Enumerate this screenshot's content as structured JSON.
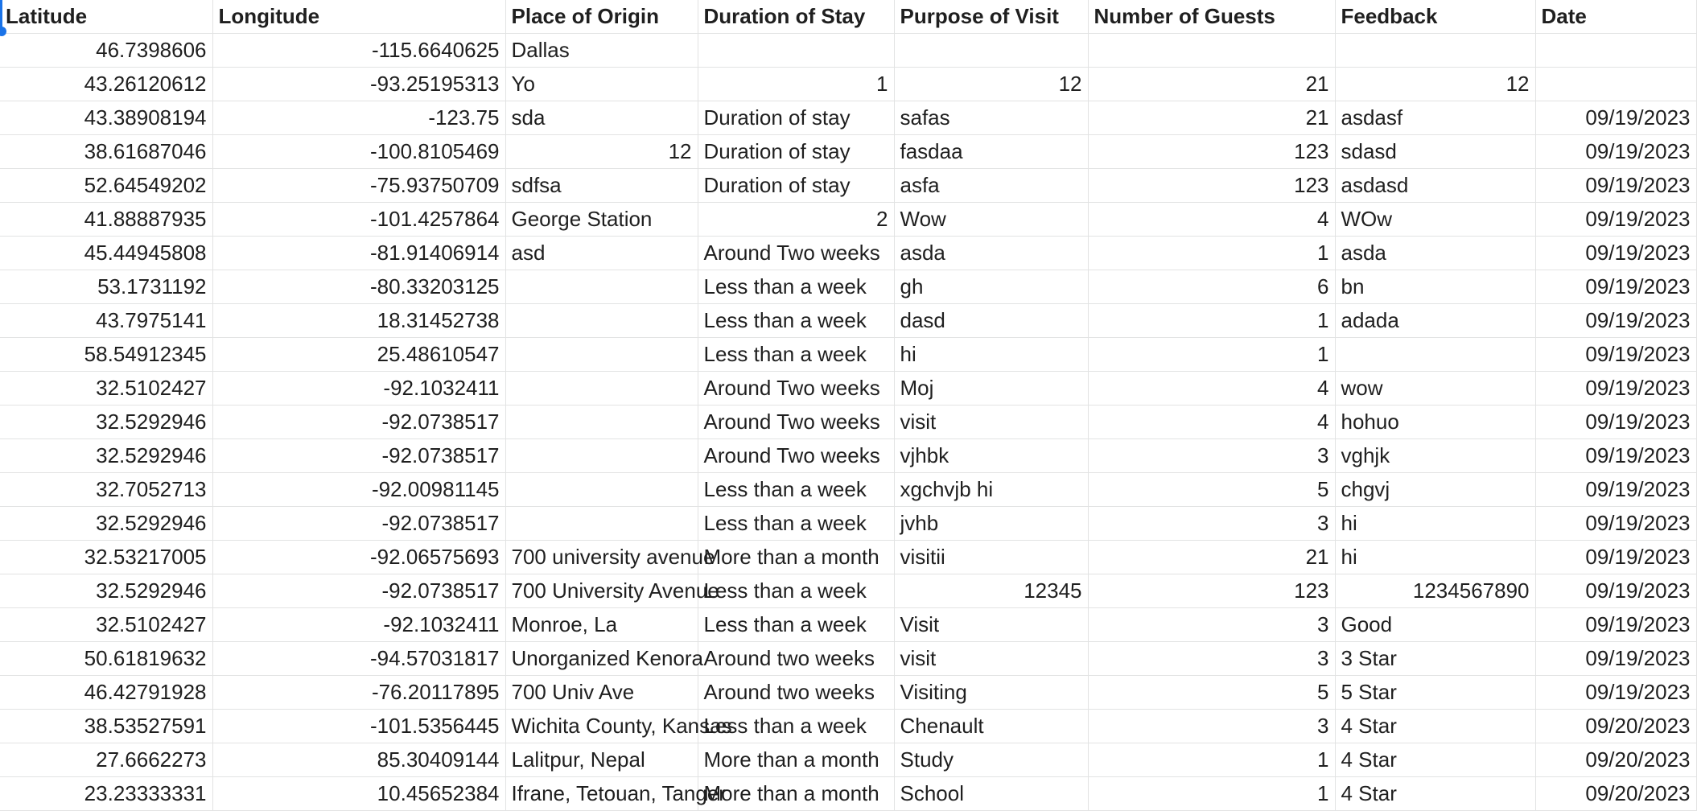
{
  "columns": [
    "Latitude",
    "Longitude",
    "Place of Origin",
    "Duration of Stay",
    "Purpose of Visit",
    "Number of Guests",
    "Feedback",
    "Date"
  ],
  "rows": [
    [
      {
        "v": "46.7398606",
        "a": "r"
      },
      {
        "v": "-115.6640625",
        "a": "r"
      },
      {
        "v": "Dallas",
        "a": "l"
      },
      {
        "v": "",
        "a": "l"
      },
      {
        "v": "",
        "a": "l"
      },
      {
        "v": "",
        "a": "l"
      },
      {
        "v": "",
        "a": "l"
      },
      {
        "v": "",
        "a": "l"
      }
    ],
    [
      {
        "v": "43.26120612",
        "a": "r"
      },
      {
        "v": "-93.25195313",
        "a": "r"
      },
      {
        "v": "Yo",
        "a": "l"
      },
      {
        "v": "1",
        "a": "r"
      },
      {
        "v": "12",
        "a": "r"
      },
      {
        "v": "21",
        "a": "r"
      },
      {
        "v": "12",
        "a": "r"
      },
      {
        "v": "",
        "a": "l"
      }
    ],
    [
      {
        "v": "43.38908194",
        "a": "r"
      },
      {
        "v": "-123.75",
        "a": "r"
      },
      {
        "v": "sda",
        "a": "l"
      },
      {
        "v": "Duration of stay",
        "a": "l"
      },
      {
        "v": "safas",
        "a": "l"
      },
      {
        "v": "21",
        "a": "r"
      },
      {
        "v": "asdasf",
        "a": "l"
      },
      {
        "v": "09/19/2023",
        "a": "r"
      }
    ],
    [
      {
        "v": "38.61687046",
        "a": "r"
      },
      {
        "v": "-100.8105469",
        "a": "r"
      },
      {
        "v": "12",
        "a": "r"
      },
      {
        "v": "Duration of stay",
        "a": "l"
      },
      {
        "v": "fasdaa",
        "a": "l"
      },
      {
        "v": "123",
        "a": "r"
      },
      {
        "v": "sdasd",
        "a": "l"
      },
      {
        "v": "09/19/2023",
        "a": "r"
      }
    ],
    [
      {
        "v": "52.64549202",
        "a": "r"
      },
      {
        "v": "-75.93750709",
        "a": "r"
      },
      {
        "v": "sdfsa",
        "a": "l"
      },
      {
        "v": "Duration of stay",
        "a": "l"
      },
      {
        "v": "asfa",
        "a": "l"
      },
      {
        "v": "123",
        "a": "r"
      },
      {
        "v": "asdasd",
        "a": "l"
      },
      {
        "v": "09/19/2023",
        "a": "r"
      }
    ],
    [
      {
        "v": "41.88887935",
        "a": "r"
      },
      {
        "v": "-101.4257864",
        "a": "r"
      },
      {
        "v": "George Station",
        "a": "l"
      },
      {
        "v": "2",
        "a": "r"
      },
      {
        "v": "Wow",
        "a": "l"
      },
      {
        "v": "4",
        "a": "r"
      },
      {
        "v": "WOw",
        "a": "l"
      },
      {
        "v": "09/19/2023",
        "a": "r"
      }
    ],
    [
      {
        "v": "45.44945808",
        "a": "r"
      },
      {
        "v": "-81.91406914",
        "a": "r"
      },
      {
        "v": "asd",
        "a": "l"
      },
      {
        "v": "Around Two weeks",
        "a": "l"
      },
      {
        "v": "asda",
        "a": "l"
      },
      {
        "v": "1",
        "a": "r"
      },
      {
        "v": "asda",
        "a": "l"
      },
      {
        "v": "09/19/2023",
        "a": "r"
      }
    ],
    [
      {
        "v": "53.1731192",
        "a": "r"
      },
      {
        "v": "-80.33203125",
        "a": "r"
      },
      {
        "v": "",
        "a": "l"
      },
      {
        "v": "Less than a week",
        "a": "l"
      },
      {
        "v": "gh",
        "a": "l"
      },
      {
        "v": "6",
        "a": "r"
      },
      {
        "v": "bn",
        "a": "l"
      },
      {
        "v": "09/19/2023",
        "a": "r"
      }
    ],
    [
      {
        "v": "43.7975141",
        "a": "r"
      },
      {
        "v": "18.31452738",
        "a": "r"
      },
      {
        "v": "",
        "a": "l"
      },
      {
        "v": "Less than a week",
        "a": "l"
      },
      {
        "v": "dasd",
        "a": "l"
      },
      {
        "v": "1",
        "a": "r"
      },
      {
        "v": "adada",
        "a": "l"
      },
      {
        "v": "09/19/2023",
        "a": "r"
      }
    ],
    [
      {
        "v": "58.54912345",
        "a": "r"
      },
      {
        "v": "25.48610547",
        "a": "r"
      },
      {
        "v": "",
        "a": "l"
      },
      {
        "v": "Less than a week",
        "a": "l"
      },
      {
        "v": "hi",
        "a": "l"
      },
      {
        "v": "1",
        "a": "r"
      },
      {
        "v": "",
        "a": "l"
      },
      {
        "v": "09/19/2023",
        "a": "r"
      }
    ],
    [
      {
        "v": "32.5102427",
        "a": "r"
      },
      {
        "v": "-92.1032411",
        "a": "r"
      },
      {
        "v": "",
        "a": "l"
      },
      {
        "v": "Around Two weeks",
        "a": "l"
      },
      {
        "v": "Moj",
        "a": "l"
      },
      {
        "v": "4",
        "a": "r"
      },
      {
        "v": "wow",
        "a": "l"
      },
      {
        "v": "09/19/2023",
        "a": "r"
      }
    ],
    [
      {
        "v": "32.5292946",
        "a": "r"
      },
      {
        "v": "-92.0738517",
        "a": "r"
      },
      {
        "v": "",
        "a": "l"
      },
      {
        "v": "Around Two weeks",
        "a": "l"
      },
      {
        "v": "visit",
        "a": "l"
      },
      {
        "v": "4",
        "a": "r"
      },
      {
        "v": "hohuo",
        "a": "l"
      },
      {
        "v": "09/19/2023",
        "a": "r"
      }
    ],
    [
      {
        "v": "32.5292946",
        "a": "r"
      },
      {
        "v": "-92.0738517",
        "a": "r"
      },
      {
        "v": "",
        "a": "l"
      },
      {
        "v": "Around Two weeks",
        "a": "l"
      },
      {
        "v": "vjhbk",
        "a": "l"
      },
      {
        "v": "3",
        "a": "r"
      },
      {
        "v": "vghjk",
        "a": "l"
      },
      {
        "v": "09/19/2023",
        "a": "r"
      }
    ],
    [
      {
        "v": "32.7052713",
        "a": "r"
      },
      {
        "v": "-92.00981145",
        "a": "r"
      },
      {
        "v": "",
        "a": "l"
      },
      {
        "v": "Less than a week",
        "a": "l"
      },
      {
        "v": "xgchvjb hi",
        "a": "l"
      },
      {
        "v": "5",
        "a": "r"
      },
      {
        "v": "chgvj",
        "a": "l"
      },
      {
        "v": "09/19/2023",
        "a": "r"
      }
    ],
    [
      {
        "v": "32.5292946",
        "a": "r"
      },
      {
        "v": "-92.0738517",
        "a": "r"
      },
      {
        "v": "",
        "a": "l"
      },
      {
        "v": "Less than a week",
        "a": "l"
      },
      {
        "v": "jvhb",
        "a": "l"
      },
      {
        "v": "3",
        "a": "r"
      },
      {
        "v": "hi",
        "a": "l"
      },
      {
        "v": "09/19/2023",
        "a": "r"
      }
    ],
    [
      {
        "v": "32.53217005",
        "a": "r"
      },
      {
        "v": "-92.06575693",
        "a": "r"
      },
      {
        "v": "700 university avenue",
        "a": "l"
      },
      {
        "v": "More than a month",
        "a": "l"
      },
      {
        "v": "visitii",
        "a": "l"
      },
      {
        "v": "21",
        "a": "r"
      },
      {
        "v": "hi",
        "a": "l"
      },
      {
        "v": "09/19/2023",
        "a": "r"
      }
    ],
    [
      {
        "v": "32.5292946",
        "a": "r"
      },
      {
        "v": "-92.0738517",
        "a": "r"
      },
      {
        "v": "700 University Avenue",
        "a": "l"
      },
      {
        "v": "Less than a week",
        "a": "l"
      },
      {
        "v": "12345",
        "a": "r"
      },
      {
        "v": "123",
        "a": "r"
      },
      {
        "v": "1234567890",
        "a": "r"
      },
      {
        "v": "09/19/2023",
        "a": "r"
      }
    ],
    [
      {
        "v": "32.5102427",
        "a": "r"
      },
      {
        "v": "-92.1032411",
        "a": "r"
      },
      {
        "v": "Monroe, La",
        "a": "l"
      },
      {
        "v": "Less than a week",
        "a": "l"
      },
      {
        "v": "Visit",
        "a": "l"
      },
      {
        "v": "3",
        "a": "r"
      },
      {
        "v": "Good",
        "a": "l"
      },
      {
        "v": "09/19/2023",
        "a": "r"
      }
    ],
    [
      {
        "v": "50.61819632",
        "a": "r"
      },
      {
        "v": "-94.57031817",
        "a": "r"
      },
      {
        "v": "Unorganized Kenora",
        "a": "l"
      },
      {
        "v": "Around two weeks",
        "a": "l"
      },
      {
        "v": "visit",
        "a": "l"
      },
      {
        "v": "3",
        "a": "r"
      },
      {
        "v": "3 Star",
        "a": "l"
      },
      {
        "v": "09/19/2023",
        "a": "r"
      }
    ],
    [
      {
        "v": "46.42791928",
        "a": "r"
      },
      {
        "v": "-76.20117895",
        "a": "r"
      },
      {
        "v": "700 Univ Ave",
        "a": "l"
      },
      {
        "v": "Around two weeks",
        "a": "l"
      },
      {
        "v": "Visiting",
        "a": "l"
      },
      {
        "v": "5",
        "a": "r"
      },
      {
        "v": "5 Star",
        "a": "l"
      },
      {
        "v": "09/19/2023",
        "a": "r"
      }
    ],
    [
      {
        "v": "38.53527591",
        "a": "r"
      },
      {
        "v": "-101.5356445",
        "a": "r"
      },
      {
        "v": "Wichita County, Kansas",
        "a": "l"
      },
      {
        "v": "Less than a week",
        "a": "l"
      },
      {
        "v": "Chenault",
        "a": "l"
      },
      {
        "v": "3",
        "a": "r"
      },
      {
        "v": "4 Star",
        "a": "l"
      },
      {
        "v": "09/20/2023",
        "a": "r"
      }
    ],
    [
      {
        "v": "27.6662273",
        "a": "r"
      },
      {
        "v": "85.30409144",
        "a": "r"
      },
      {
        "v": "Lalitpur, Nepal",
        "a": "l"
      },
      {
        "v": "More than a month",
        "a": "l"
      },
      {
        "v": "Study",
        "a": "l"
      },
      {
        "v": "1",
        "a": "r"
      },
      {
        "v": "4 Star",
        "a": "l"
      },
      {
        "v": "09/20/2023",
        "a": "r"
      }
    ],
    [
      {
        "v": "23.23333331",
        "a": "r"
      },
      {
        "v": "10.45652384",
        "a": "r"
      },
      {
        "v": "Ifrane, Tetouan, Tanger",
        "a": "l"
      },
      {
        "v": "More than a month",
        "a": "l"
      },
      {
        "v": "School",
        "a": "l"
      },
      {
        "v": "1",
        "a": "r"
      },
      {
        "v": "4 Star",
        "a": "l"
      },
      {
        "v": "09/20/2023",
        "a": "r"
      }
    ]
  ]
}
